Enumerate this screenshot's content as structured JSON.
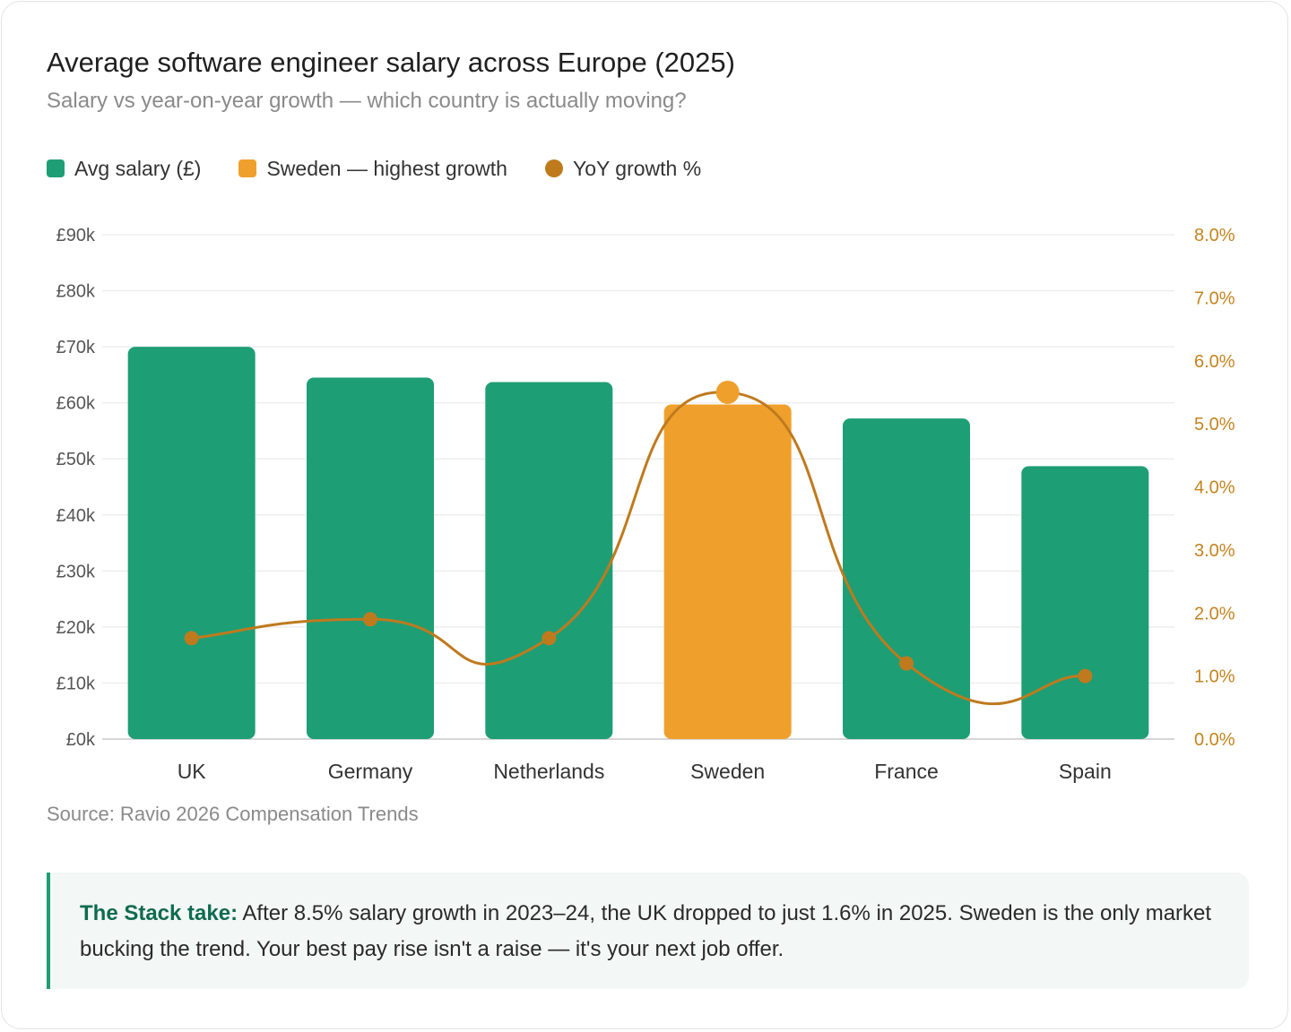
{
  "title": "Average software engineer salary across Europe (2025)",
  "subtitle": "Salary vs year-on-year growth — which country is actually moving?",
  "legend": {
    "salary": "Avg salary (£)",
    "highlight": "Sweden — highest growth",
    "growth": "YoY growth %"
  },
  "colors": {
    "bar": "#1e9e75",
    "highlight": "#efa02c",
    "growth_line": "#bf7a1e",
    "left_axis_text": "#555555",
    "right_axis_text": "#c4831e",
    "grid": "#eeeeee"
  },
  "chart_data": {
    "type": "bar",
    "categories": [
      "UK",
      "Germany",
      "Netherlands",
      "Sweden",
      "France",
      "Spain"
    ],
    "highlight_category": "Sweden",
    "series": [
      {
        "name": "Avg salary (£)",
        "axis": "left",
        "kind": "bar",
        "values": [
          70000,
          64500,
          63700,
          59700,
          57200,
          48700
        ]
      },
      {
        "name": "YoY growth %",
        "axis": "right",
        "kind": "line",
        "values": [
          1.6,
          1.9,
          1.6,
          5.5,
          1.2,
          1.0
        ]
      }
    ],
    "y_left": {
      "min": 0,
      "max": 90000,
      "ticks": [
        "£0k",
        "£10k",
        "£20k",
        "£30k",
        "£40k",
        "£50k",
        "£60k",
        "£70k",
        "£80k",
        "£90k"
      ]
    },
    "y_right": {
      "min": 0,
      "max": 8,
      "ticks": [
        "0.0%",
        "1.0%",
        "2.0%",
        "3.0%",
        "4.0%",
        "5.0%",
        "6.0%",
        "7.0%",
        "8.0%"
      ]
    },
    "grid": true,
    "legend_position": "top-left"
  },
  "source": "Source: Ravio 2026 Compensation Trends",
  "callout": {
    "lead": "The Stack take:",
    "text": " After 8.5% salary growth in 2023–24, the UK dropped to just 1.6% in 2025. Sweden is the only market bucking the trend. Your best pay rise isn't a raise — it's your next job offer."
  }
}
